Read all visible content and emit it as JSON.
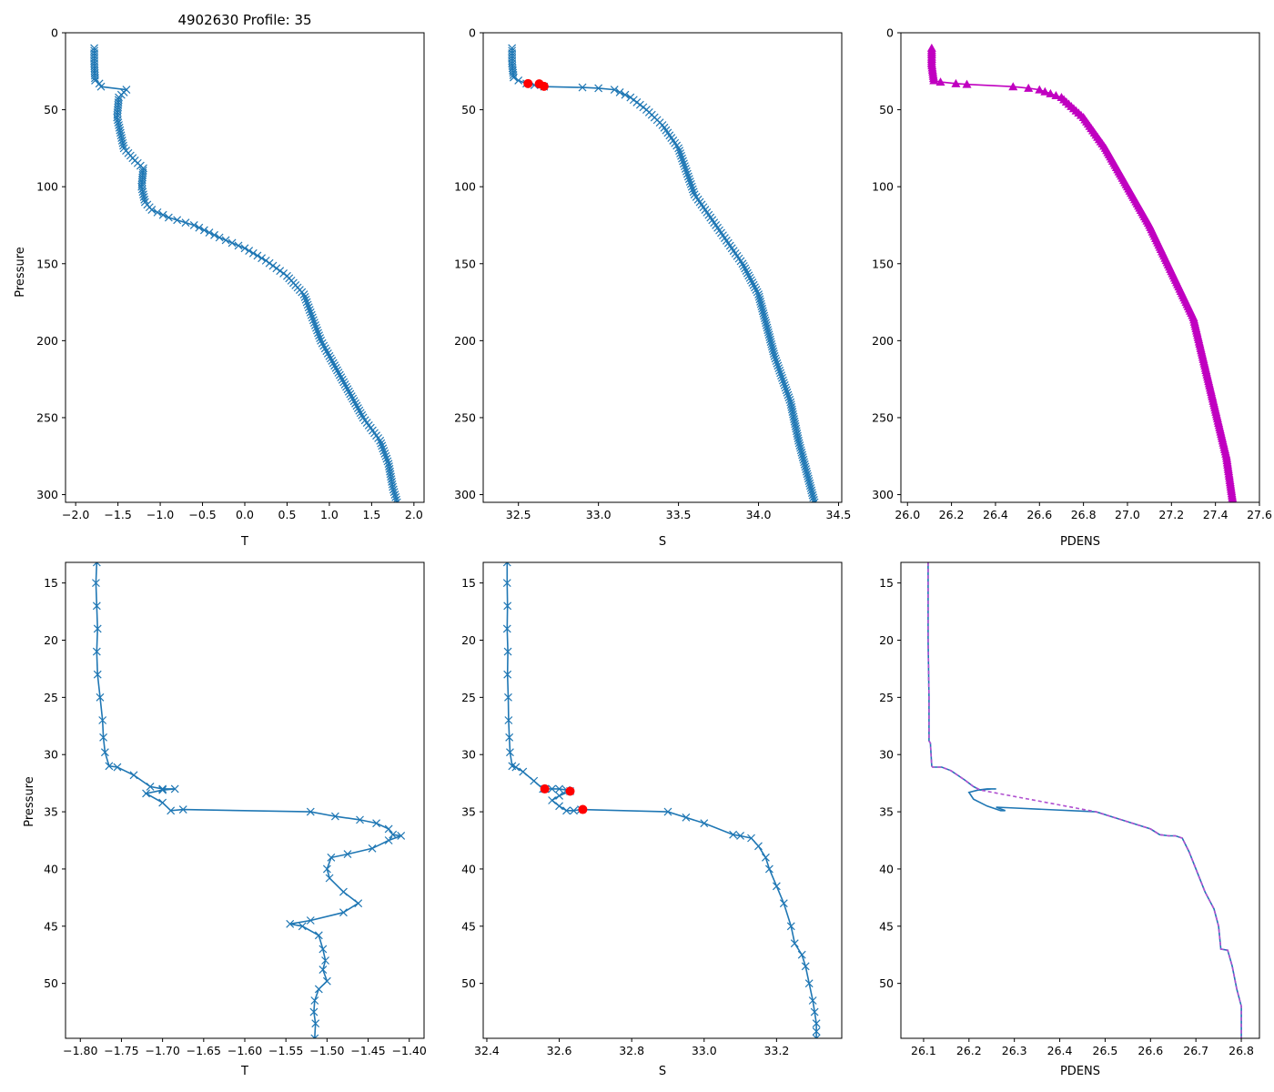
{
  "colors": {
    "line": "#1f77b4",
    "magenta": "#c000c0",
    "red": "#ff0000",
    "dash": "#b050d0"
  },
  "chart_data": [
    {
      "id": "t_full",
      "type": "line",
      "title": "4902630 Profile: 35",
      "xlabel": "T",
      "ylabel": "Pressure",
      "xlim": [
        -2.12,
        2.12
      ],
      "ylim": [
        305,
        0
      ],
      "y_inverted": true,
      "xticks": [
        "-2.0",
        "-1.5",
        "-1.0",
        "-0.5",
        "0.0",
        "0.5",
        "1.0",
        "1.5",
        "2.0"
      ],
      "yticks": [
        "0",
        "50",
        "100",
        "150",
        "200",
        "250",
        "300"
      ],
      "marker": "x",
      "series": [
        {
          "name": "T",
          "x": [
            -1.78,
            -1.78,
            -1.77,
            -1.72,
            -1.7,
            -1.4,
            -1.49,
            -1.51,
            -1.47,
            -1.43,
            -1.3,
            -1.2,
            -1.22,
            -1.18,
            -1.1,
            -0.9,
            -0.6,
            -0.3,
            0.0,
            0.25,
            0.5,
            0.7,
            0.8,
            0.9,
            1.0,
            1.2,
            1.4,
            1.6,
            1.7,
            1.75,
            1.8
          ],
          "y": [
            10,
            20,
            31,
            33,
            35,
            37,
            42,
            55,
            65,
            75,
            83,
            88,
            100,
            110,
            115,
            120,
            125,
            133,
            140,
            148,
            158,
            170,
            185,
            200,
            210,
            230,
            250,
            265,
            280,
            295,
            305
          ]
        }
      ]
    },
    {
      "id": "s_full",
      "type": "line",
      "title": "",
      "xlabel": "S",
      "ylabel": "",
      "xlim": [
        32.28,
        34.52
      ],
      "ylim": [
        305,
        0
      ],
      "y_inverted": true,
      "xticks": [
        "32.5",
        "33.0",
        "33.5",
        "34.0",
        "34.5"
      ],
      "yticks": [
        "0",
        "50",
        "100",
        "150",
        "200",
        "250",
        "300"
      ],
      "marker": "x",
      "series": [
        {
          "name": "S",
          "x": [
            32.46,
            32.46,
            32.47,
            32.5,
            32.55,
            32.6,
            32.66,
            32.9,
            33.0,
            33.1,
            33.2,
            33.3,
            33.4,
            33.5,
            33.55,
            33.6,
            33.7,
            33.8,
            33.9,
            34.0,
            34.05,
            34.1,
            34.2,
            34.25,
            34.3,
            34.35
          ],
          "y": [
            10,
            20,
            29,
            31,
            33,
            34,
            35,
            35.5,
            36,
            37,
            42,
            50,
            60,
            75,
            90,
            105,
            120,
            135,
            150,
            170,
            190,
            210,
            240,
            265,
            285,
            305
          ]
        }
      ],
      "highlight": {
        "x": [
          32.56,
          32.63,
          32.66
        ],
        "y": [
          33,
          33.2,
          34.8
        ]
      }
    },
    {
      "id": "d_full",
      "type": "line",
      "title": "",
      "xlabel": "PDENS",
      "ylabel": "",
      "xlim": [
        25.97,
        27.6
      ],
      "ylim": [
        305,
        0
      ],
      "y_inverted": true,
      "xticks": [
        "26.0",
        "26.2",
        "26.4",
        "26.6",
        "26.8",
        "27.0",
        "27.2",
        "27.4",
        "27.6"
      ],
      "yticks": [
        "0",
        "50",
        "100",
        "150",
        "200",
        "250",
        "300"
      ],
      "marker": "triangle",
      "series": [
        {
          "name": "PDENS",
          "x": [
            26.11,
            26.11,
            26.12,
            26.15,
            26.22,
            26.27,
            26.48,
            26.55,
            26.6,
            26.7,
            26.8,
            26.9,
            27.0,
            27.1,
            27.2,
            27.3,
            27.35,
            27.4,
            27.45,
            27.48
          ],
          "y": [
            10,
            20,
            31,
            32,
            33,
            33.5,
            35,
            36,
            37,
            42,
            55,
            75,
            100,
            125,
            155,
            185,
            215,
            245,
            275,
            305
          ]
        }
      ]
    },
    {
      "id": "t_zoom",
      "type": "line",
      "title": "",
      "xlabel": "T",
      "ylabel": "Pressure",
      "xlim": [
        -1.818,
        -1.382
      ],
      "ylim": [
        54.8,
        13.2
      ],
      "y_inverted": true,
      "xticks": [
        "-1.80",
        "-1.75",
        "-1.70",
        "-1.65",
        "-1.60",
        "-1.55",
        "-1.50",
        "-1.45",
        "-1.40"
      ],
      "yticks": [
        "15",
        "20",
        "25",
        "30",
        "35",
        "40",
        "45",
        "50"
      ],
      "marker": "x",
      "series": [
        {
          "name": "T",
          "x": [
            -1.78,
            -1.781,
            -1.78,
            -1.779,
            -1.78,
            -1.779,
            -1.776,
            -1.773,
            -1.772,
            -1.77,
            -1.765,
            -1.755,
            -1.735,
            -1.715,
            -1.7,
            -1.685,
            -1.7,
            -1.72,
            -1.7,
            -1.69,
            -1.675,
            -1.52,
            -1.49,
            -1.46,
            -1.44,
            -1.425,
            -1.42,
            -1.41,
            -1.425,
            -1.445,
            -1.475,
            -1.495,
            -1.5,
            -1.497,
            -1.48,
            -1.462,
            -1.48,
            -1.52,
            -1.545,
            -1.53,
            -1.51,
            -1.505,
            -1.502,
            -1.505,
            -1.5,
            -1.51,
            -1.515,
            -1.516,
            -1.514,
            -1.515
          ],
          "y": [
            13.2,
            15,
            17,
            19,
            21,
            23,
            25,
            27,
            28.5,
            29.8,
            31,
            31.1,
            31.8,
            32.8,
            33,
            33,
            33.1,
            33.4,
            34.2,
            34.9,
            34.8,
            35,
            35.4,
            35.7,
            36,
            36.5,
            37,
            37.1,
            37.5,
            38.2,
            38.7,
            39,
            40,
            40.8,
            42,
            43,
            43.8,
            44.5,
            44.8,
            45,
            45.8,
            47,
            48,
            48.8,
            49.8,
            50.5,
            51.5,
            52.5,
            53.5,
            54.8
          ]
        }
      ]
    },
    {
      "id": "s_zoom",
      "type": "line",
      "title": "",
      "xlabel": "S",
      "ylabel": "",
      "xlim": [
        32.39,
        33.38
      ],
      "ylim": [
        54.8,
        13.2
      ],
      "y_inverted": true,
      "xticks": [
        "32.4",
        "32.6",
        "32.8",
        "33.0",
        "33.2"
      ],
      "yticks": [
        "15",
        "20",
        "25",
        "30",
        "35",
        "40",
        "45",
        "50"
      ],
      "marker": "x",
      "series": [
        {
          "name": "S",
          "x": [
            32.456,
            32.456,
            32.457,
            32.456,
            32.458,
            32.457,
            32.459,
            32.46,
            32.462,
            32.464,
            32.47,
            32.48,
            32.5,
            32.53,
            32.555,
            32.56,
            32.58,
            32.6,
            32.62,
            32.63,
            32.6,
            32.58,
            32.6,
            32.62,
            32.64,
            32.66,
            32.9,
            32.95,
            33.0,
            33.08,
            33.1,
            33.13,
            33.15,
            33.17,
            33.18,
            33.2,
            33.22,
            33.24,
            33.25,
            33.27,
            33.28,
            33.29,
            33.3,
            33.305,
            33.31,
            33.31,
            33.31
          ],
          "y": [
            13.2,
            15,
            17,
            19,
            21,
            23,
            25,
            27,
            28.5,
            29.8,
            31,
            31.1,
            31.5,
            32.3,
            33,
            33,
            33,
            33,
            33.1,
            33.2,
            33.6,
            34.0,
            34.5,
            34.9,
            34.9,
            34.8,
            35,
            35.5,
            36,
            37,
            37.1,
            37.3,
            38,
            39,
            40,
            41.5,
            43,
            45,
            46.5,
            47.5,
            48.5,
            50,
            51.5,
            52.5,
            53.5,
            54.2,
            54.8
          ]
        }
      ],
      "highlight": {
        "x": [
          32.56,
          32.63,
          32.665
        ],
        "y": [
          33,
          33.2,
          34.8
        ]
      }
    },
    {
      "id": "d_zoom",
      "type": "line",
      "title": "",
      "xlabel": "PDENS",
      "ylabel": "",
      "xlim": [
        26.05,
        26.84
      ],
      "ylim": [
        54.8,
        13.2
      ],
      "y_inverted": true,
      "xticks": [
        "26.1",
        "26.2",
        "26.3",
        "26.4",
        "26.5",
        "26.6",
        "26.7",
        "26.8"
      ],
      "yticks": [
        "15",
        "20",
        "25",
        "30",
        "35",
        "40",
        "45",
        "50"
      ],
      "marker": "none",
      "series": [
        {
          "name": "PDENS",
          "x": [
            26.11,
            26.11,
            26.112,
            26.112,
            26.115,
            26.118,
            26.12,
            26.14,
            26.16,
            26.19,
            26.21,
            26.225,
            26.25,
            26.26,
            26.24,
            26.22,
            26.2,
            26.21,
            26.24,
            26.27,
            26.28,
            26.26,
            26.48,
            26.52,
            26.56,
            26.6,
            26.62,
            26.64,
            26.655,
            26.67,
            26.685,
            26.7,
            26.72,
            26.74,
            26.75,
            26.755,
            26.77,
            26.78,
            26.79,
            26.8,
            26.8,
            26.8
          ],
          "y": [
            13.2,
            20,
            25,
            28.8,
            29,
            31,
            31.1,
            31.1,
            31.4,
            32.2,
            32.8,
            33.1,
            33,
            33,
            33,
            33.1,
            33.3,
            33.9,
            34.5,
            34.9,
            34.9,
            34.6,
            35,
            35.5,
            36,
            36.5,
            37,
            37.1,
            37.1,
            37.3,
            38.5,
            40,
            42,
            43.5,
            45,
            47,
            47.1,
            48.5,
            50.5,
            52,
            53.5,
            54.8
          ]
        }
      ],
      "overlay": "dashed-copy"
    }
  ]
}
